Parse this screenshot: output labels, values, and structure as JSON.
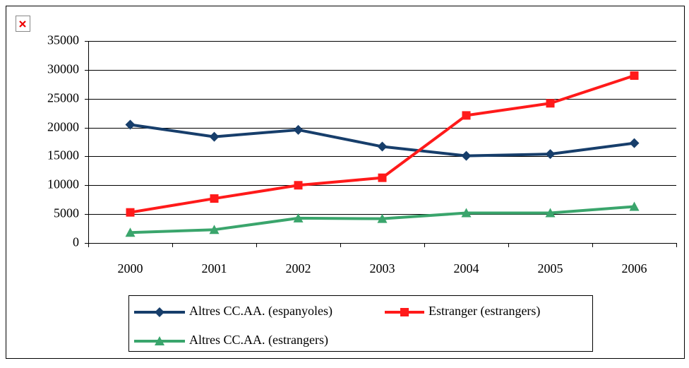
{
  "chart_data": {
    "type": "line",
    "categories": [
      "2000",
      "2001",
      "2002",
      "2003",
      "2004",
      "2005",
      "2006"
    ],
    "series": [
      {
        "name": "Altres CC.AA. (espanyoles)",
        "color": "#173e6b",
        "marker": "diamond",
        "values": [
          20500,
          18400,
          19600,
          16700,
          15100,
          15400,
          17300
        ]
      },
      {
        "name": "Estranger (estrangers)",
        "color": "#ff1a1a",
        "marker": "square",
        "values": [
          5300,
          7700,
          10000,
          11300,
          22100,
          24200,
          29000
        ]
      },
      {
        "name": "Altres CC.AA. (estrangers)",
        "color": "#3aa56c",
        "marker": "triangle",
        "values": [
          1800,
          2300,
          4300,
          4200,
          5200,
          5200,
          6300
        ]
      }
    ],
    "ylim": [
      0,
      35000
    ],
    "yticks": [
      0,
      5000,
      10000,
      15000,
      20000,
      25000,
      30000,
      35000
    ],
    "grid": true,
    "legend": "bottom"
  }
}
